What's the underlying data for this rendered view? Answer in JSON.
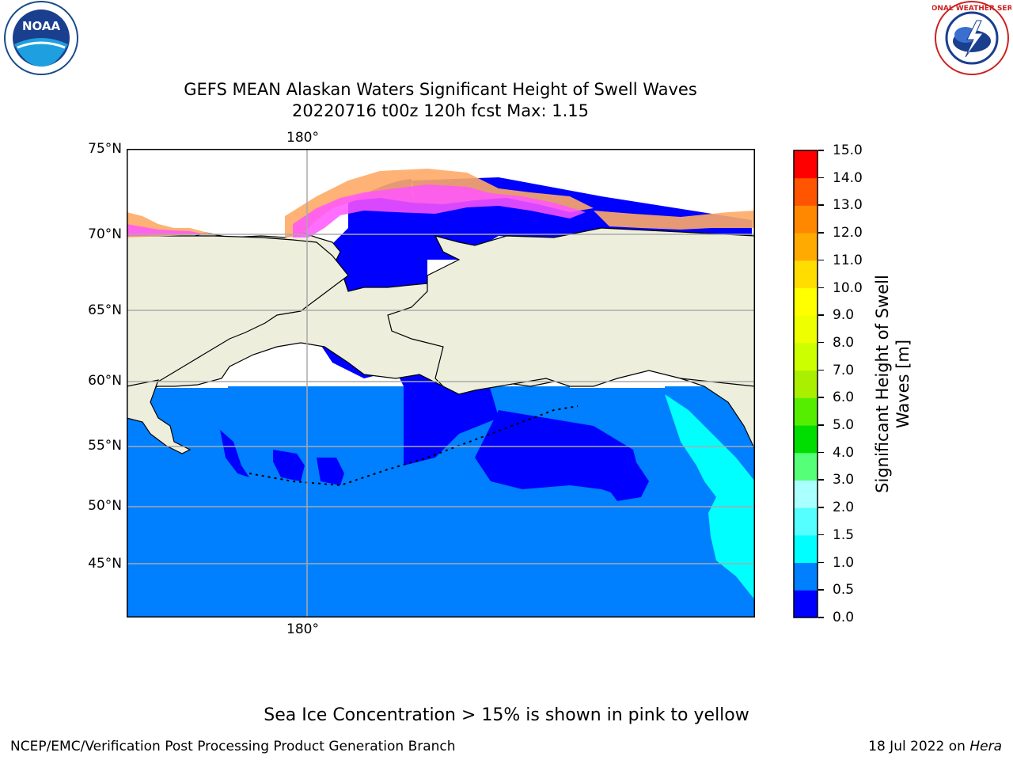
{
  "title": {
    "line1": "GEFS MEAN Alaskan Waters Significant Height of Swell Waves",
    "line2": "20220716 t00z 120h fcst    Max: 1.15"
  },
  "map": {
    "longitude_label": "180°",
    "latitude_labels": [
      "75°N",
      "70°N",
      "65°N",
      "60°N",
      "55°N",
      "50°N",
      "45°N"
    ],
    "colors": {
      "land": "#eeeedd",
      "ocean_low": "#0000ff",
      "ocean_mid": "#007fff",
      "ocean_high": "#00ffff",
      "ice_pink": "#ff55ff",
      "ice_orange": "#ffaa66",
      "ice_yellow": "#ffdd44"
    }
  },
  "colorbar": {
    "title_line1": "Significant Height of Swell",
    "title_line2": "Waves [m]",
    "ticks": [
      "0.0",
      "0.5",
      "1.0",
      "1.5",
      "2.0",
      "3.0",
      "4.0",
      "5.0",
      "6.0",
      "7.0",
      "8.0",
      "9.0",
      "10.0",
      "11.0",
      "12.0",
      "13.0",
      "14.0",
      "15.0"
    ],
    "colors": [
      "#0000ff",
      "#007fff",
      "#00ffff",
      "#55ffff",
      "#aaffff",
      "#55ff77",
      "#00dd00",
      "#55ee00",
      "#aaee00",
      "#ccff00",
      "#eeff00",
      "#ffff00",
      "#ffdd00",
      "#ffaa00",
      "#ff8800",
      "#ff5500",
      "#ff0000"
    ]
  },
  "logos": {
    "noaa_text": "NOAA",
    "nws_text": "NATIONAL WEATHER SERVICE"
  },
  "note": "Sea Ice Concentration > 15% is shown in pink to yellow",
  "footer": {
    "left": "NCEP/EMC/Verification Post Processing Product Generation Branch",
    "right_prefix": "18 Jul 2022 on ",
    "right_host": "Hera"
  }
}
